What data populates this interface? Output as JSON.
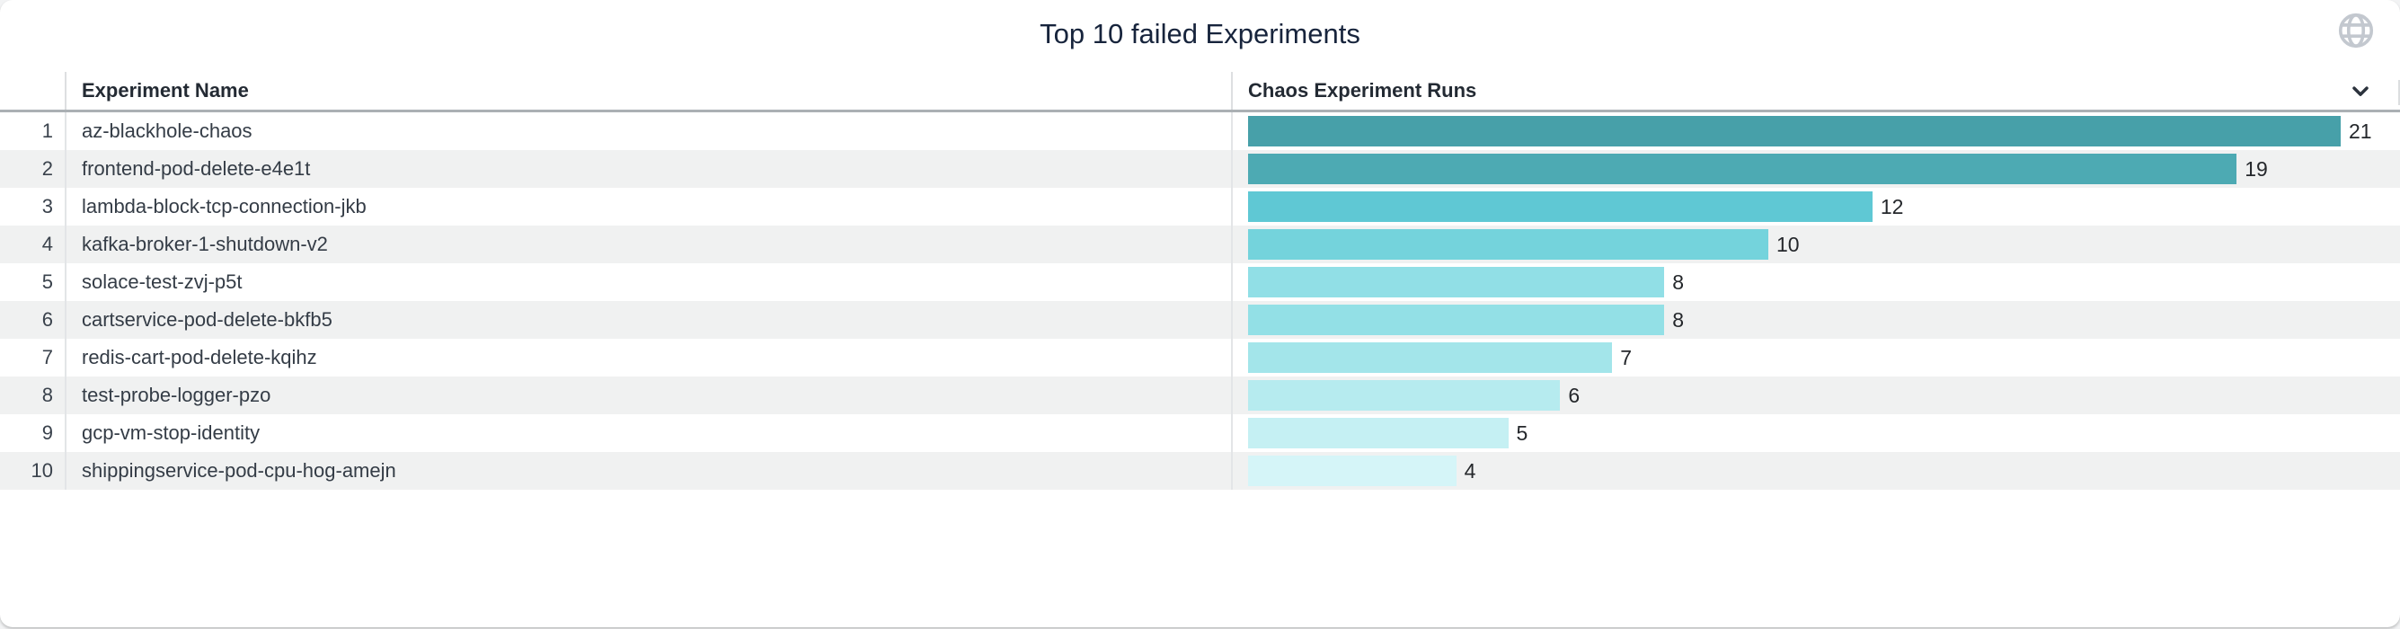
{
  "title": "Top 10 failed Experiments",
  "icons": {
    "globe": "globe-icon",
    "sort": "chevron-down-icon"
  },
  "colors": {
    "title_text": "#17243c",
    "header_text": "#232a33",
    "row_stripe": "#f0f1f1",
    "globe_icon": "#c3c8cf",
    "chevron_icon": "#2c333d"
  },
  "table": {
    "columns": [
      {
        "label": "Experiment Name"
      },
      {
        "label": "Chaos Experiment Runs"
      }
    ],
    "rows": [
      {
        "rank": "1",
        "name": "az-blackhole-chaos",
        "runs": 21,
        "bar_color": "#47a0a9"
      },
      {
        "rank": "2",
        "name": "frontend-pod-delete-e4e1t",
        "runs": 19,
        "bar_color": "#4daab3"
      },
      {
        "rank": "3",
        "name": "lambda-block-tcp-connection-jkb",
        "runs": 12,
        "bar_color": "#5fc8d4"
      },
      {
        "rank": "4",
        "name": "kafka-broker-1-shutdown-v2",
        "runs": 10,
        "bar_color": "#74d3dc"
      },
      {
        "rank": "5",
        "name": "solace-test-zvj-p5t",
        "runs": 8,
        "bar_color": "#91dfe6"
      },
      {
        "rank": "6",
        "name": "cartservice-pod-delete-bkfb5",
        "runs": 8,
        "bar_color": "#93e0e6"
      },
      {
        "rank": "7",
        "name": "redis-cart-pod-delete-kqihz",
        "runs": 7,
        "bar_color": "#a3e5ea"
      },
      {
        "rank": "8",
        "name": "test-probe-logger-pzo",
        "runs": 6,
        "bar_color": "#b6ebef"
      },
      {
        "rank": "9",
        "name": "gcp-vm-stop-identity",
        "runs": 5,
        "bar_color": "#c5f0f3"
      },
      {
        "rank": "10",
        "name": "shippingservice-pod-cpu-hog-amejn",
        "runs": 4,
        "bar_color": "#d5f5f8"
      }
    ]
  },
  "chart_data": {
    "type": "bar",
    "orientation": "horizontal",
    "title": "Top 10 failed Experiments",
    "xlabel": "Chaos Experiment Runs",
    "ylabel": "Experiment Name",
    "categories": [
      "az-blackhole-chaos",
      "frontend-pod-delete-e4e1t",
      "lambda-block-tcp-connection-jkb",
      "kafka-broker-1-shutdown-v2",
      "solace-test-zvj-p5t",
      "cartservice-pod-delete-bkfb5",
      "redis-cart-pod-delete-kqihz",
      "test-probe-logger-pzo",
      "gcp-vm-stop-identity",
      "shippingservice-pod-cpu-hog-amejn"
    ],
    "values": [
      21,
      19,
      12,
      10,
      8,
      8,
      7,
      6,
      5,
      4
    ],
    "xlim": [
      0,
      21
    ],
    "grid": false,
    "legend": "none",
    "bar_colors": [
      "#47a0a9",
      "#4daab3",
      "#5fc8d4",
      "#74d3dc",
      "#91dfe6",
      "#93e0e6",
      "#a3e5ea",
      "#b6ebef",
      "#c5f0f3",
      "#d5f5f8"
    ],
    "value_labels": "shown at end of each bar"
  }
}
